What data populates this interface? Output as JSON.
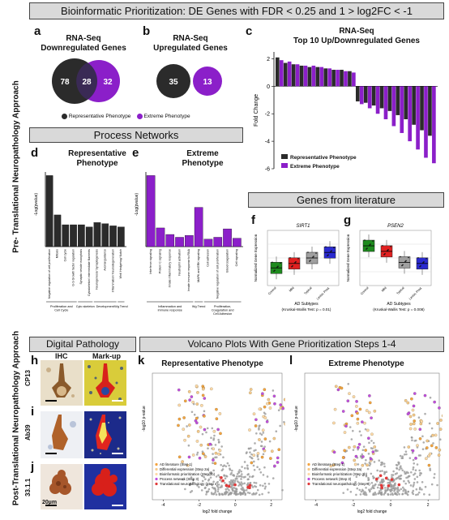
{
  "header": {
    "title": "Bioinformatic Prioritization: DE Genes with FDR < 0.25 and 1 > log2FC < -1",
    "process_networks": "Process Networks",
    "genes_from_literature": "Genes from literature",
    "digital_pathology": "Digital Pathology",
    "volcano": "Volcano Plots With Gene Prioritization Steps 1-4"
  },
  "side_labels": {
    "pre": "Pre- Translational Neuropathology Approach",
    "post": "Post-Translational Neuropathology Approach"
  },
  "panels": {
    "a": "a",
    "b": "b",
    "c": "c",
    "d": "d",
    "e": "e",
    "f": "f",
    "g": "g",
    "h": "h",
    "i": "i",
    "j": "j",
    "k": "k",
    "l": "l"
  },
  "venn_a": {
    "title_line1": "RNA-Seq",
    "title_line2": "Downregulated Genes",
    "left": "78",
    "overlap": "28",
    "right": "32"
  },
  "venn_b": {
    "title_line1": "RNA-Seq",
    "title_line2": "Upregulated Genes",
    "left": "35",
    "right": "13"
  },
  "venn_legend": {
    "rep": "Representative Phenotype",
    "ext": "Extreme Phenotype"
  },
  "colors": {
    "rep": "#2b2b2b",
    "ext": "#8b1fc9",
    "banner": "#d9d9d9",
    "green": "#1e8a1e",
    "red": "#e02020",
    "grey": "#a0a0a0",
    "blue": "#2a2ad0"
  },
  "chart_c": {
    "title_line1": "RNA-Seq",
    "title_line2": "Top 10 Up/Downregulated Genes",
    "ylabel": "Fold Change",
    "legend_rep": "Representative Phenotype",
    "legend_ext": "Extreme Phenotype",
    "yticks": [
      "2",
      "0",
      "-2",
      "-4",
      "-6"
    ]
  },
  "chart_data": [
    {
      "id": "c",
      "type": "bar",
      "ylim": [
        -6,
        2.5
      ],
      "series": [
        {
          "name": "Representative Phenotype",
          "values": [
            2.1,
            1.7,
            1.6,
            1.5,
            1.4,
            1.4,
            1.3,
            1.2,
            1.2,
            1.1,
            -1.1,
            -1.2,
            -1.4,
            -1.6,
            -1.8,
            -2.1,
            -2.4,
            -2.8,
            -3.2,
            -3.6
          ]
        },
        {
          "name": "Extreme Phenotype",
          "values": [
            1.9,
            1.8,
            1.6,
            1.5,
            1.5,
            1.4,
            1.3,
            1.2,
            1.1,
            1.0,
            -1.3,
            -1.6,
            -2.0,
            -2.4,
            -2.9,
            -3.4,
            -4.0,
            -4.6,
            -5.2,
            -5.6
          ]
        }
      ]
    },
    {
      "id": "d",
      "type": "bar",
      "title": "Representative Phenotype",
      "ylabel": "-Log(pvalue)",
      "categories": [
        "Negative regulation of cell proliferation",
        "Mitosis",
        "Cell cycle",
        "G-S Growth factor regulation",
        "Synaptic vesicle exocytosis",
        "Cytoskeleton/ intermediate filaments",
        "Neurogenesis/ Synaptogenesis",
        "Axonal guidance",
        "Inflammation/ Neurodegeneration",
        "Wnt/ Hedgehog/ Notch"
      ],
      "values": [
        6.5,
        2.9,
        2.0,
        2.0,
        2.0,
        1.8,
        2.2,
        2.1,
        1.9,
        1.8
      ],
      "group_labels": [
        "Proliferation and Cell Cycle",
        "Cyto skeleton",
        "Development",
        "Wg Trend"
      ]
    },
    {
      "id": "e",
      "type": "bar",
      "title": "Extreme Phenotype",
      "ylabel": "-Log(pvalue)",
      "categories": [
        "Interferon signaling",
        "Protein C signaling",
        "Innate inflammatory response",
        "Neutrophil activation",
        "Innate immune response to RNA",
        "MAPK and ERK signaling",
        "Cell adhesion",
        "Negative regulation of cell proliferation",
        "Blood coagulation",
        "Cell signaling"
      ],
      "values": [
        7.6,
        2.0,
        1.3,
        1.0,
        1.2,
        4.2,
        0.8,
        1.0,
        1.9,
        0.9
      ],
      "group_labels": [
        "Inflammation and immune response",
        "Wg Trend",
        "Proliferation, Coagulation and Cell Adhesion"
      ]
    },
    {
      "id": "f",
      "type": "box",
      "title": "SIRT1",
      "ylabel": "Normalized Gene Expression",
      "xlabel": "AD Subtypes",
      "note": "Kruskal-Wallis Test: p = 0.01",
      "categories": [
        "Control",
        "Mild",
        "Typical",
        "Limbic Pred."
      ],
      "medians": [
        0.32,
        0.4,
        0.5,
        0.6
      ]
    },
    {
      "id": "g",
      "type": "box",
      "title": "PSEN2",
      "ylabel": "Normalized Gene Expression",
      "xlabel": "AD Subtypes",
      "note": "Kruskal-Wallis Test: p = 0.008",
      "categories": [
        "Control",
        "Mild",
        "Typical",
        "Limbic Pred."
      ],
      "medians": [
        0.72,
        0.62,
        0.42,
        0.4
      ]
    }
  ],
  "chart_d_text": {
    "title_line1": "Representative",
    "title_line2": "Phenotype",
    "ylabel": "-Log(pvalue)",
    "groups": [
      "Proliferation and Cell Cycle",
      "Cyto skeleton",
      "Development",
      "Wg Trend"
    ]
  },
  "chart_e_text": {
    "title_line1": "Extreme",
    "title_line2": "Phenotype",
    "ylabel": "-Log(pvalue)",
    "groups": [
      "Inflammation and immune response",
      "Wg Trend",
      "Proliferation, Coagulation and Cell Adhesion"
    ]
  },
  "box_f": {
    "title": "SIRT1",
    "xlabel": "AD Subtypes",
    "note": "(Kruskal-Wallis Test: p = 0.01)",
    "ylabel": "Normalized Gene Expression"
  },
  "box_g": {
    "title": "PSEN2",
    "xlabel": "AD Subtypes",
    "note": "(Kruskal-Wallis Test: p = 0.008)",
    "ylabel": "Normalized Gene Expression"
  },
  "pathology": {
    "col_ihc": "IHC",
    "col_markup": "Mark-up",
    "rows": [
      "CP13",
      "Ab39",
      "33.1.1"
    ],
    "scale": "20µm"
  },
  "volcano_k": {
    "title": "Representative Phenotype",
    "xlabel": "log2 fold change",
    "ylabel": "-log10 p-value",
    "legend": [
      "AD literature (Step 1)",
      "Differential expression (Step 2a)",
      "Bioinformatic prioritization (Step 2b)",
      "Process network (Step 3)",
      "Translational neuropathology (Step 4)"
    ],
    "xticks": [
      "-4",
      "-2",
      "0",
      "2"
    ]
  },
  "volcano_l": {
    "title": "Extreme Phenotype",
    "xlabel": "log2 fold change",
    "ylabel": "-log10 p-value",
    "legend": [
      "AD literature (Step 1)",
      "Differential expression (Step 2a)",
      "Bioinformatic prioritization (Step 2b)",
      "Process network (Step 3)",
      "Translational neuropathology (Step 4)"
    ],
    "xticks": [
      "-4",
      "-2",
      "0",
      "2"
    ]
  }
}
